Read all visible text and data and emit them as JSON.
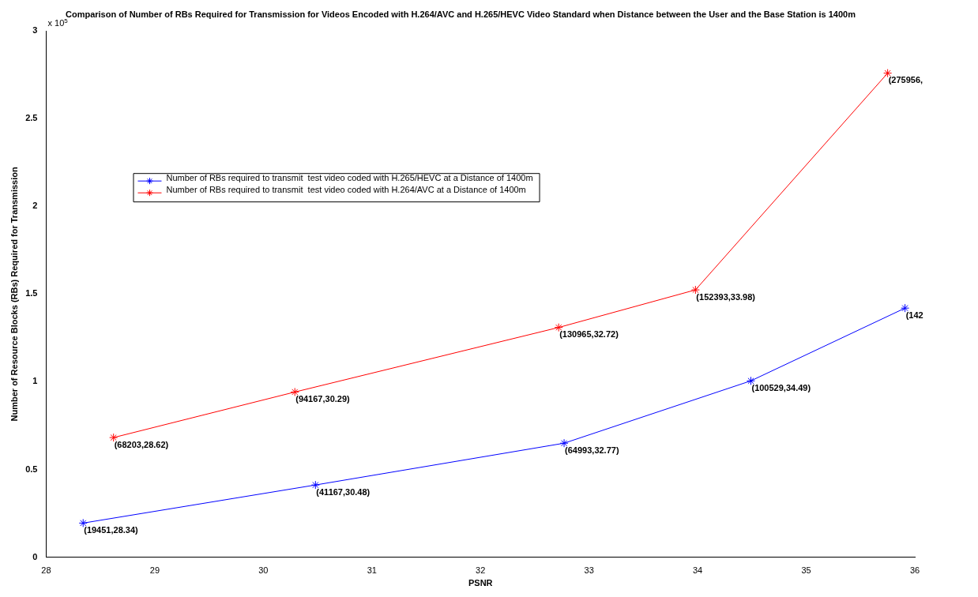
{
  "chart_data": {
    "type": "line",
    "title": "Comparison of Number of RBs Required for Transmission for Videos Encoded with H.264/AVC and H.265/HEVC Video Standard when Distance between the User and the Base Station is 1400m",
    "xlabel": "PSNR",
    "ylabel": "Number of Resource Blocks (RBs) Required for Transmission",
    "annotations": [
      "x 10$^{5}$",
      {
        "text": "(19451,28.34)",
        "x": 28.34,
        "y": 0.19451
      },
      {
        "text": "(41167,30.48)",
        "x": 30.48,
        "y": 0.41167
      },
      {
        "text": "(64993,32.77)",
        "x": 32.77,
        "y": 0.64993
      },
      {
        "text": "(100529,34.49)",
        "x": 34.49,
        "y": 1.00529
      },
      {
        "text": "(142",
        "x": 35.91,
        "y": 1.42
      },
      {
        "text": "(68203,28.62)",
        "x": 28.62,
        "y": 0.68203
      },
      {
        "text": "(94167,30.29)",
        "x": 30.29,
        "y": 0.94167
      },
      {
        "text": "(130965,32.72)",
        "x": 32.72,
        "y": 1.30965
      },
      {
        "text": "(152393,33.98)",
        "x": 33.98,
        "y": 1.52393
      },
      {
        "text": "(275956,",
        "x": 35.75,
        "y": 2.75956
      }
    ],
    "xlim": [
      28,
      36
    ],
    "xticks": [
      28,
      29,
      30,
      31,
      32,
      33,
      34,
      35,
      36
    ],
    "ylim": [
      0,
      3
    ],
    "yticks": [
      0,
      0.5,
      1,
      1.5,
      2,
      2.5,
      3
    ],
    "grid": false,
    "legend": "top left",
    "marker": "cross",
    "line_style": "solid",
    "series": [
      {
        "name": "Number of RBs required to transmit  test video coded with H.265/HEVC at a Distance of 1400m",
        "color": "#0000ff",
        "x": [
          28.34,
          30.48,
          32.77,
          34.49,
          35.91
        ],
        "values": [
          0.19451,
          0.41167,
          0.64993,
          1.00529,
          1.42
        ]
      },
      {
        "name": "Number of RBs required to transmit  test video coded with H.264/AVC at a Distance of 1400m",
        "color": "#ff0000",
        "x": [
          28.62,
          30.29,
          32.72,
          33.98,
          35.75
        ],
        "values": [
          0.68203,
          0.94167,
          1.30965,
          1.52393,
          2.75956
        ]
      }
    ]
  }
}
